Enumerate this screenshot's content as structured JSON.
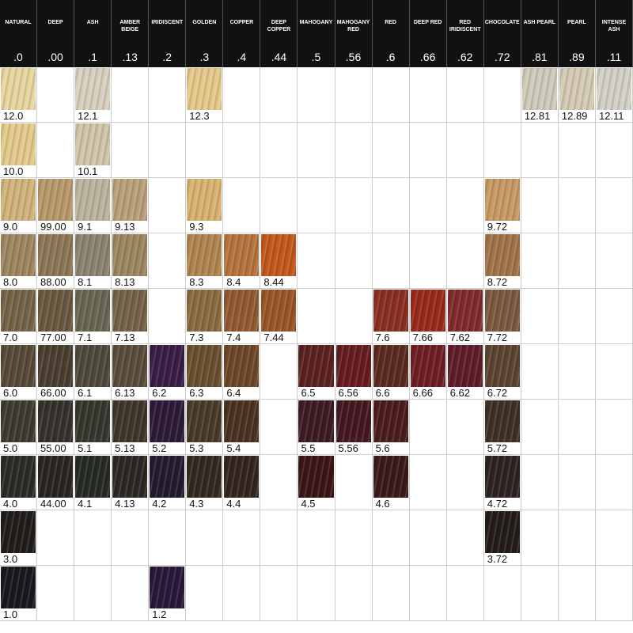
{
  "header": {
    "columns": [
      {
        "name": "NATURAL",
        "code": ".0"
      },
      {
        "name": "DEEP",
        "code": ".00"
      },
      {
        "name": "ASH",
        "code": ".1"
      },
      {
        "name": "AMBER BEIGE",
        "code": ".13"
      },
      {
        "name": "IRIDISCENT",
        "code": ".2"
      },
      {
        "name": "GOLDEN",
        "code": ".3"
      },
      {
        "name": "COPPER",
        "code": ".4"
      },
      {
        "name": "DEEP COPPER",
        "code": ".44"
      },
      {
        "name": "MAHOGANY",
        "code": ".5"
      },
      {
        "name": "MAHOGANY RED",
        "code": ".56"
      },
      {
        "name": "RED",
        "code": ".6"
      },
      {
        "name": "DEEP RED",
        "code": ".66"
      },
      {
        "name": "RED IRIDISCENT",
        "code": ".62"
      },
      {
        "name": "CHOCOLATE",
        "code": ".72"
      },
      {
        "name": "ASH PEARL",
        "code": ".81"
      },
      {
        "name": "PEARL",
        "code": ".89"
      },
      {
        "name": "INTENSE ASH",
        "code": ".11"
      }
    ]
  },
  "table": {
    "rows": [
      [
        {
          "label": "12.0",
          "color": "#e9d7a0"
        },
        null,
        {
          "label": "12.1",
          "color": "#d9d0c0"
        },
        null,
        null,
        {
          "label": "12.3",
          "color": "#e6c98a"
        },
        null,
        null,
        null,
        null,
        null,
        null,
        null,
        null,
        {
          "label": "12.81",
          "color": "#cfcbbb"
        },
        {
          "label": "12.89",
          "color": "#d6ccb5"
        },
        {
          "label": "12.11",
          "color": "#d4d1c8"
        }
      ],
      [
        {
          "label": "10.0",
          "color": "#e4cb8c"
        },
        null,
        {
          "label": "10.1",
          "color": "#cfc6a8"
        },
        null,
        null,
        null,
        null,
        null,
        null,
        null,
        null,
        null,
        null,
        null,
        null,
        null,
        null
      ],
      [
        {
          "label": "9.0",
          "color": "#d2b47c"
        },
        {
          "label": "99.00",
          "color": "#b8996a"
        },
        {
          "label": "9.1",
          "color": "#bcb49e"
        },
        {
          "label": "9.13",
          "color": "#b9a07a"
        },
        null,
        {
          "label": "9.3",
          "color": "#d9b370"
        },
        null,
        null,
        null,
        null,
        null,
        null,
        null,
        {
          "label": "9.72",
          "color": "#c99a64"
        },
        null,
        null,
        null
      ],
      [
        {
          "label": "8.0",
          "color": "#9e8660"
        },
        {
          "label": "88.00",
          "color": "#8d7656"
        },
        {
          "label": "8.1",
          "color": "#8c8470"
        },
        {
          "label": "8.13",
          "color": "#9c8760"
        },
        null,
        {
          "label": "8.3",
          "color": "#b08550"
        },
        {
          "label": "8.4",
          "color": "#b8743e"
        },
        {
          "label": "8.44",
          "color": "#c2581c"
        },
        null,
        null,
        null,
        null,
        null,
        {
          "label": "8.72",
          "color": "#a0744a"
        },
        null,
        null,
        null
      ],
      [
        {
          "label": "7.0",
          "color": "#76644a"
        },
        {
          "label": "77.00",
          "color": "#6a573f"
        },
        {
          "label": "7.1",
          "color": "#6a6552"
        },
        {
          "label": "7.13",
          "color": "#75634a"
        },
        null,
        {
          "label": "7.3",
          "color": "#8a6a3e"
        },
        {
          "label": "7.4",
          "color": "#925a32"
        },
        {
          "label": "7.44",
          "color": "#9a5526"
        },
        null,
        null,
        {
          "label": "7.6",
          "color": "#8a2e22"
        },
        {
          "label": "7.66",
          "color": "#9a2a1c"
        },
        {
          "label": "7.62",
          "color": "#7f2a2c"
        },
        {
          "label": "7.72",
          "color": "#7a5a3e"
        },
        null,
        null,
        null
      ],
      [
        {
          "label": "6.0",
          "color": "#584a38"
        },
        {
          "label": "66.00",
          "color": "#4a3e30"
        },
        {
          "label": "6.1",
          "color": "#4e4a3c"
        },
        {
          "label": "6.13",
          "color": "#5a4c3a"
        },
        {
          "label": "6.2",
          "color": "#3a1f48"
        },
        {
          "label": "6.3",
          "color": "#6a5030"
        },
        {
          "label": "6.4",
          "color": "#6e4628"
        },
        null,
        {
          "label": "6.5",
          "color": "#5a2020"
        },
        {
          "label": "6.56",
          "color": "#651c1e"
        },
        {
          "label": "6.6",
          "color": "#5a2a20"
        },
        {
          "label": "6.66",
          "color": "#6e1e22"
        },
        {
          "label": "6.62",
          "color": "#5e1c28"
        },
        {
          "label": "6.72",
          "color": "#5a4430"
        },
        null,
        null,
        null
      ],
      [
        {
          "label": "5.0",
          "color": "#3e3a30"
        },
        {
          "label": "55.00",
          "color": "#36302a"
        },
        {
          "label": "5.1",
          "color": "#34382e"
        },
        {
          "label": "5.13",
          "color": "#3e3628"
        },
        {
          "label": "5.2",
          "color": "#2c1a38"
        },
        {
          "label": "5.3",
          "color": "#4a3a28"
        },
        {
          "label": "5.4",
          "color": "#4a3222"
        },
        null,
        {
          "label": "5.5",
          "color": "#3e1a22"
        },
        {
          "label": "5.56",
          "color": "#451820"
        },
        {
          "label": "5.6",
          "color": "#4a1c1a"
        },
        null,
        null,
        {
          "label": "5.72",
          "color": "#3e3026"
        },
        null,
        null,
        null
      ],
      [
        {
          "label": "4.0",
          "color": "#2c2a24"
        },
        {
          "label": "44.00",
          "color": "#2a2420"
        },
        {
          "label": "4.1",
          "color": "#262a24"
        },
        {
          "label": "4.13",
          "color": "#2e2822"
        },
        {
          "label": "4.2",
          "color": "#241a2c"
        },
        {
          "label": "4.3",
          "color": "#322a20"
        },
        {
          "label": "4.4",
          "color": "#33261e"
        },
        null,
        {
          "label": "4.5",
          "color": "#3a1418"
        },
        null,
        {
          "label": "4.6",
          "color": "#3a1a1a"
        },
        null,
        null,
        {
          "label": "4.72",
          "color": "#2c2420"
        },
        null,
        null,
        null
      ],
      [
        {
          "label": "3.0",
          "color": "#201c1a"
        },
        null,
        null,
        null,
        null,
        null,
        null,
        null,
        null,
        null,
        null,
        null,
        null,
        {
          "label": "3.72",
          "color": "#231c18"
        },
        null,
        null,
        null
      ],
      [
        {
          "label": "1.0",
          "color": "#16181c"
        },
        null,
        null,
        null,
        {
          "label": "1.2",
          "color": "#2a1838"
        },
        null,
        null,
        null,
        null,
        null,
        null,
        null,
        null,
        null,
        null,
        null,
        null
      ]
    ]
  }
}
